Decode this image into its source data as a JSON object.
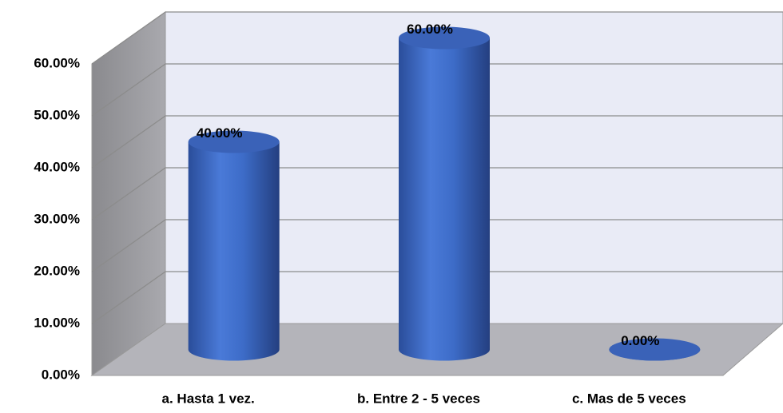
{
  "chart_data": {
    "type": "bar3d",
    "categories": [
      "a. Hasta 1 vez.",
      "b. Entre 2 - 5 veces",
      "c. Mas de 5 veces"
    ],
    "values": [
      40,
      60,
      0
    ],
    "value_labels": [
      "40.00%",
      "60.00%",
      "0.00%"
    ],
    "color": "#4472c4",
    "ylim": [
      0,
      60
    ],
    "yticks": [
      {
        "value": 0,
        "label": "0.00%"
      },
      {
        "value": 10,
        "label": "10.00%"
      },
      {
        "value": 20,
        "label": "20.00%"
      },
      {
        "value": 30,
        "label": "30.00%"
      },
      {
        "value": 40,
        "label": "40.00%"
      },
      {
        "value": 50,
        "label": "50.00%"
      },
      {
        "value": 60,
        "label": "60.00%"
      }
    ],
    "grid": true
  }
}
